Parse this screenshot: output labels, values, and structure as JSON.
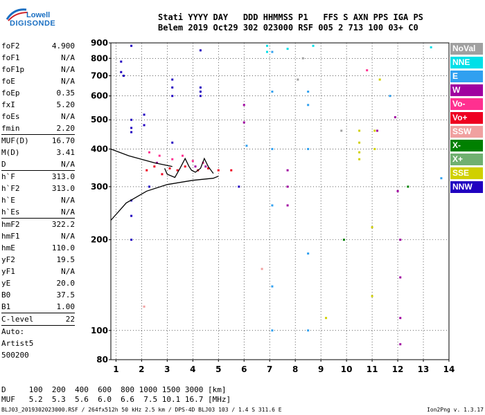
{
  "logo": {
    "line1": "Lowell",
    "line2": "DIGISONDE"
  },
  "header": {
    "line1": "Stati YYYY DAY   DDD HHMMSS P1   FFS S AXN PPS IGA PS",
    "line2": "Belem 2019 Oct29 302 023000 RSF 005 2 713 100 03+ C0"
  },
  "params": [
    {
      "key": "foF2",
      "value": "4.900"
    },
    {
      "key": "foF1",
      "value": "N/A"
    },
    {
      "key": "foF1p",
      "value": "N/A"
    },
    {
      "key": "foE",
      "value": "N/A"
    },
    {
      "key": "foEp",
      "value": "0.35"
    },
    {
      "key": "fxI",
      "value": "5.20"
    },
    {
      "key": "foEs",
      "value": "N/A"
    },
    {
      "key": "fmin",
      "value": "2.20",
      "rule": true
    },
    {
      "key": "MUF(D)",
      "value": "16.70"
    },
    {
      "key": "M(D)",
      "value": "3.41"
    },
    {
      "key": "D",
      "value": "N/A",
      "rule": true
    },
    {
      "key": "h`F",
      "value": "313.0"
    },
    {
      "key": "h`F2",
      "value": "313.0"
    },
    {
      "key": "h`E",
      "value": "N/A"
    },
    {
      "key": "h`Es",
      "value": "N/A",
      "rule": true
    },
    {
      "key": "hmF2",
      "value": "322.2"
    },
    {
      "key": "hmF1",
      "value": "N/A"
    },
    {
      "key": "hmE",
      "value": "110.0"
    },
    {
      "key": "yF2",
      "value": "19.5"
    },
    {
      "key": "yF1",
      "value": "N/A"
    },
    {
      "key": "yE",
      "value": "20.0"
    },
    {
      "key": "B0",
      "value": "37.5"
    },
    {
      "key": "B1",
      "value": "1.00",
      "rule": true
    },
    {
      "key": "C-level",
      "value": "22",
      "rule": true
    }
  ],
  "auto_text": [
    "Auto:",
    "Artist5",
    "500200"
  ],
  "legend": [
    {
      "label": "NoVal",
      "color": "#a0a0a0"
    },
    {
      "label": "NNE",
      "color": "#00e0e8"
    },
    {
      "label": "E",
      "color": "#30a0f0"
    },
    {
      "label": "W",
      "color": "#a000a0"
    },
    {
      "label": "Vo-",
      "color": "#ff3090"
    },
    {
      "label": "Vo+",
      "color": "#ee0020"
    },
    {
      "label": "SSW",
      "color": "#f0a0a0"
    },
    {
      "label": "X-",
      "color": "#008000"
    },
    {
      "label": "X+",
      "color": "#70b070"
    },
    {
      "label": "SSE",
      "color": "#d0d000"
    },
    {
      "label": "NNW",
      "color": "#2000c0"
    }
  ],
  "bottom": {
    "line1": "D     100  200  400  600  800 1000 1500 3000 [km]",
    "line2": "MUF   5.2  5.3  5.6  6.0  6.6  7.5 10.1 16.7 [MHz]"
  },
  "footer": {
    "text": "BLJ03_2019302023000.RSF / 264fx512h 50 kHz 2.5 km / DPS-4D BLJ03 103 / 1.4 S 311.6 E",
    "version": "Ion2Png v. 1.3.17"
  },
  "chart_data": {
    "type": "scatter",
    "xlim": [
      0.8,
      14
    ],
    "ylim": [
      80,
      900
    ],
    "x_ticks": [
      1,
      2,
      3,
      4,
      5,
      6,
      7,
      8,
      9,
      10,
      11,
      12,
      13,
      14
    ],
    "y_ticks": [
      80,
      100,
      200,
      300,
      400,
      500,
      600,
      700,
      800,
      900
    ],
    "grid": true,
    "series": [
      {
        "name": "NNW",
        "color": "#2000c0",
        "points": [
          [
            1.6,
            880
          ],
          [
            1.6,
            500
          ],
          [
            1.6,
            470
          ],
          [
            1.6,
            455
          ],
          [
            1.6,
            200
          ],
          [
            1.6,
            240
          ],
          [
            1.6,
            270
          ],
          [
            2.1,
            520
          ],
          [
            2.1,
            480
          ],
          [
            2.3,
            300
          ],
          [
            3.2,
            680
          ],
          [
            3.2,
            640
          ],
          [
            3.2,
            600
          ],
          [
            3.2,
            420
          ],
          [
            4.3,
            640
          ],
          [
            4.3,
            620
          ],
          [
            4.3,
            600
          ],
          [
            4.3,
            850
          ],
          [
            5.8,
            300
          ],
          [
            1.2,
            720
          ],
          [
            1.2,
            780
          ],
          [
            1.3,
            700
          ]
        ]
      },
      {
        "name": "E",
        "color": "#30a0f0",
        "points": [
          [
            7.1,
            840
          ],
          [
            7.1,
            620
          ],
          [
            7.1,
            400
          ],
          [
            7.1,
            260
          ],
          [
            7.1,
            140
          ],
          [
            7.1,
            100
          ],
          [
            8.5,
            620
          ],
          [
            8.5,
            560
          ],
          [
            8.5,
            400
          ],
          [
            8.5,
            180
          ],
          [
            8.5,
            100
          ],
          [
            6.1,
            410
          ],
          [
            11.7,
            600
          ],
          [
            13.7,
            320
          ]
        ]
      },
      {
        "name": "NNE",
        "color": "#00e0e8",
        "points": [
          [
            6.9,
            880
          ],
          [
            6.9,
            840
          ],
          [
            7.7,
            860
          ],
          [
            8.7,
            880
          ],
          [
            13.3,
            870
          ]
        ]
      },
      {
        "name": "W",
        "color": "#a000a0",
        "points": [
          [
            2.6,
            360
          ],
          [
            4.1,
            350
          ],
          [
            4.5,
            350
          ],
          [
            7.7,
            340
          ],
          [
            7.7,
            300
          ],
          [
            7.7,
            260
          ],
          [
            12.1,
            200
          ],
          [
            12.1,
            150
          ],
          [
            12.1,
            110
          ],
          [
            12.1,
            90
          ],
          [
            12.0,
            290
          ],
          [
            11.9,
            510
          ],
          [
            6.0,
            490
          ],
          [
            6.0,
            560
          ],
          [
            11.2,
            460
          ]
        ]
      },
      {
        "name": "Vo+",
        "color": "#ee0020",
        "points": [
          [
            2.2,
            340
          ],
          [
            2.5,
            350
          ],
          [
            2.8,
            330
          ],
          [
            3.1,
            345
          ],
          [
            3.4,
            340
          ],
          [
            3.7,
            350
          ],
          [
            4.2,
            340
          ],
          [
            4.6,
            345
          ],
          [
            5.0,
            340
          ],
          [
            5.5,
            340
          ]
        ]
      },
      {
        "name": "Vo-",
        "color": "#ff3090",
        "points": [
          [
            2.3,
            390
          ],
          [
            2.7,
            380
          ],
          [
            3.2,
            370
          ],
          [
            3.6,
            380
          ],
          [
            4.0,
            365
          ],
          [
            4.4,
            360
          ],
          [
            10.8,
            730
          ]
        ]
      },
      {
        "name": "SSE",
        "color": "#d0d000",
        "points": [
          [
            10.5,
            460
          ],
          [
            10.5,
            420
          ],
          [
            10.5,
            390
          ],
          [
            10.5,
            370
          ],
          [
            11.1,
            460
          ],
          [
            11.1,
            400
          ],
          [
            11.0,
            220
          ],
          [
            11.0,
            130
          ],
          [
            11.3,
            680
          ],
          [
            9.2,
            110
          ]
        ]
      },
      {
        "name": "X-",
        "color": "#008000",
        "points": [
          [
            12.4,
            300
          ],
          [
            9.9,
            200
          ]
        ]
      },
      {
        "name": "NoVal",
        "color": "#a0a0a0",
        "points": [
          [
            8.1,
            680
          ],
          [
            9.8,
            460
          ],
          [
            8.3,
            800
          ]
        ]
      },
      {
        "name": "SSW",
        "color": "#f0a0a0",
        "points": [
          [
            2.1,
            120
          ],
          [
            6.7,
            160
          ]
        ]
      }
    ],
    "curves": [
      {
        "name": "upper",
        "color": "#000000",
        "points": [
          [
            0.8,
            400
          ],
          [
            1.5,
            380
          ],
          [
            2.5,
            360
          ],
          [
            3.2,
            350
          ]
        ]
      },
      {
        "name": "lower",
        "color": "#000000",
        "points": [
          [
            0.8,
            232
          ],
          [
            1.4,
            265
          ],
          [
            2.2,
            290
          ],
          [
            3.0,
            305
          ],
          [
            4.0,
            315
          ],
          [
            4.8,
            320
          ],
          [
            5.0,
            325
          ]
        ]
      },
      {
        "name": "trace",
        "color": "#000000",
        "points": [
          [
            2.9,
            345
          ],
          [
            3.0,
            330
          ],
          [
            3.3,
            322
          ],
          [
            3.5,
            345
          ],
          [
            3.7,
            372
          ],
          [
            3.85,
            350
          ],
          [
            3.95,
            340
          ],
          [
            4.1,
            335
          ],
          [
            4.3,
            345
          ],
          [
            4.45,
            372
          ],
          [
            4.6,
            350
          ],
          [
            4.8,
            332
          ]
        ]
      }
    ]
  }
}
